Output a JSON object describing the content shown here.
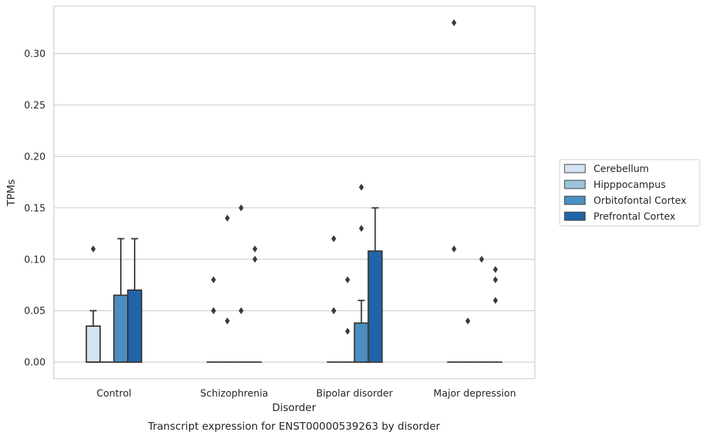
{
  "chart_data": {
    "type": "box",
    "title": "",
    "caption": "Transcript expression for ENST00000539263 by disorder",
    "xlabel": "Disorder",
    "ylabel": "TPMs",
    "ylim": [
      -0.016,
      0.346
    ],
    "yticks": [
      "0.00",
      "0.05",
      "0.10",
      "0.15",
      "0.20",
      "0.25",
      "0.30"
    ],
    "ytick_values": [
      0,
      0.05,
      0.1,
      0.15,
      0.2,
      0.25,
      0.3
    ],
    "grid": "horizontal",
    "legend_position": "right",
    "categories": [
      "Control",
      "Schizophrenia",
      "Bipolar disorder",
      "Major depression"
    ],
    "series": [
      {
        "name": "Cerebellum",
        "color": "#d4e3f1",
        "boxes": [
          {
            "q1": 0,
            "median": 0,
            "q3": 0.035,
            "whisker_low": 0,
            "whisker_high": 0.05,
            "outliers": [
              0.11
            ]
          },
          {
            "q1": 0,
            "median": 0,
            "q3": 0,
            "whisker_low": 0,
            "whisker_high": 0,
            "outliers": [
              0.08,
              0.05,
              0.05
            ]
          },
          {
            "q1": 0,
            "median": 0,
            "q3": 0,
            "whisker_low": 0,
            "whisker_high": 0,
            "outliers": [
              0.12,
              0.05,
              0.05
            ]
          },
          {
            "q1": 0,
            "median": 0,
            "q3": 0,
            "whisker_low": 0,
            "whisker_high": 0,
            "outliers": [
              0.33,
              0.11
            ]
          }
        ]
      },
      {
        "name": "Hipppocampus",
        "color": "#9ac2dc",
        "boxes": [
          {
            "q1": 0,
            "median": 0,
            "q3": 0,
            "whisker_low": 0,
            "whisker_high": 0,
            "outliers": []
          },
          {
            "q1": 0,
            "median": 0,
            "q3": 0,
            "whisker_low": 0,
            "whisker_high": 0,
            "outliers": [
              0.14,
              0.04
            ]
          },
          {
            "q1": 0,
            "median": 0,
            "q3": 0,
            "whisker_low": 0,
            "whisker_high": 0,
            "outliers": [
              0.08,
              0.03
            ]
          },
          {
            "q1": 0,
            "median": 0,
            "q3": 0,
            "whisker_low": 0,
            "whisker_high": 0,
            "outliers": [
              0.04
            ]
          }
        ]
      },
      {
        "name": "Orbitofontal Cortex",
        "color": "#4b8fc1",
        "boxes": [
          {
            "q1": 0,
            "median": 0,
            "q3": 0.065,
            "whisker_low": 0,
            "whisker_high": 0.12,
            "outliers": []
          },
          {
            "q1": 0,
            "median": 0,
            "q3": 0,
            "whisker_low": 0,
            "whisker_high": 0,
            "outliers": [
              0.15,
              0.05
            ]
          },
          {
            "q1": 0,
            "median": 0,
            "q3": 0.038,
            "whisker_low": 0,
            "whisker_high": 0.06,
            "outliers": [
              0.17,
              0.13
            ]
          },
          {
            "q1": 0,
            "median": 0,
            "q3": 0,
            "whisker_low": 0,
            "whisker_high": 0,
            "outliers": [
              0.1
            ]
          }
        ]
      },
      {
        "name": "Prefrontal Cortex",
        "color": "#2164a7",
        "boxes": [
          {
            "q1": 0,
            "median": 0,
            "q3": 0.07,
            "whisker_low": 0,
            "whisker_high": 0.12,
            "outliers": []
          },
          {
            "q1": 0,
            "median": 0,
            "q3": 0,
            "whisker_low": 0,
            "whisker_high": 0,
            "outliers": [
              0.11,
              0.1
            ]
          },
          {
            "q1": 0,
            "median": 0,
            "q3": 0.108,
            "whisker_low": 0,
            "whisker_high": 0.15,
            "outliers": []
          },
          {
            "q1": 0,
            "median": 0,
            "q3": 0,
            "whisker_low": 0,
            "whisker_high": 0,
            "outliers": [
              0.09,
              0.08,
              0.06
            ]
          }
        ]
      }
    ]
  }
}
